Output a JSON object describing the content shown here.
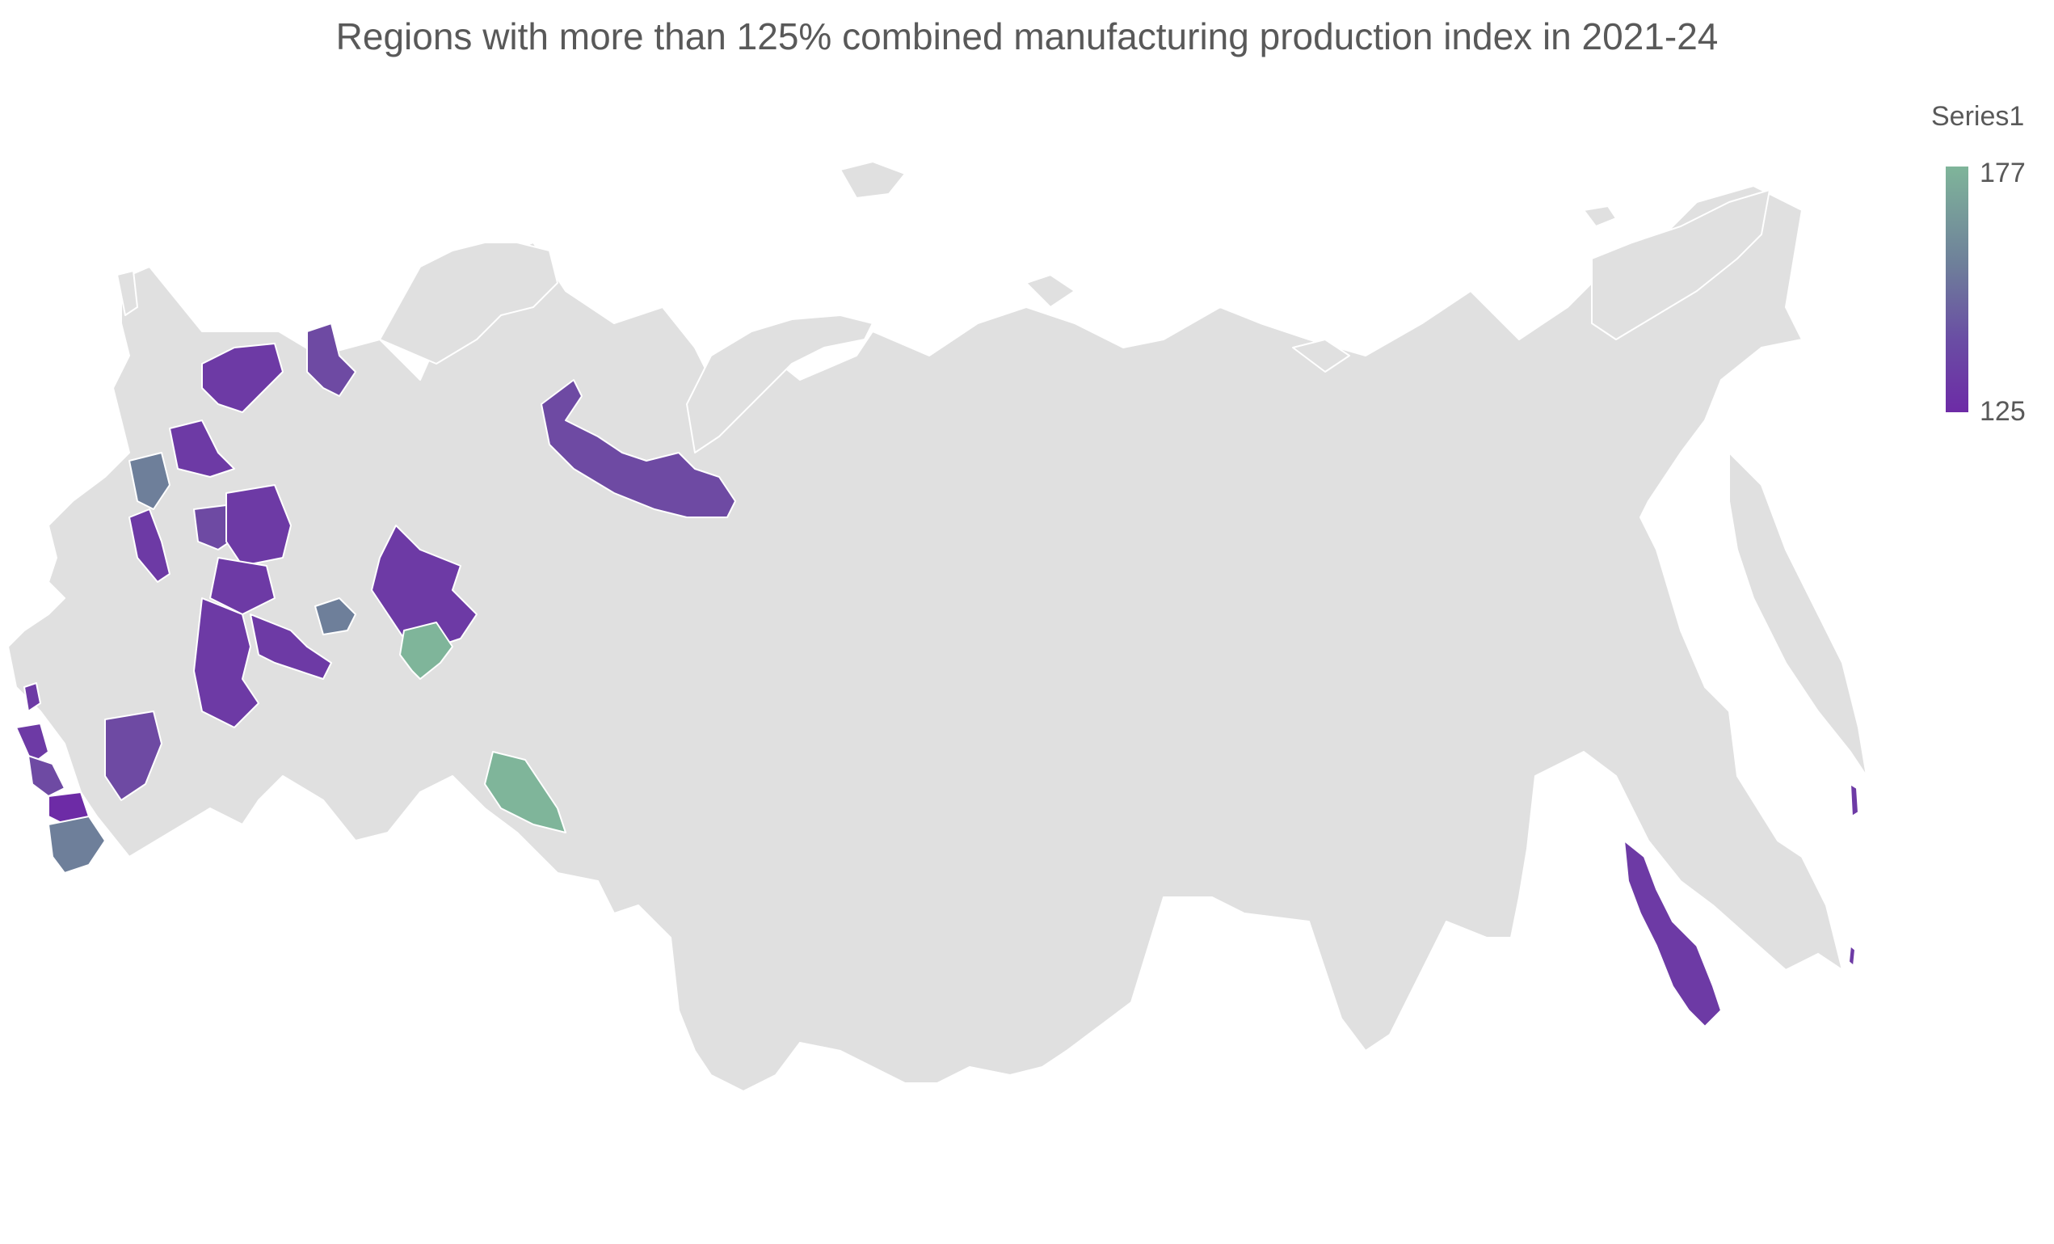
{
  "title": "Regions with more than 125% combined manufacturing production index in 2021-24",
  "legend": {
    "title": "Series1",
    "max": "177",
    "min": "125"
  },
  "colors": {
    "base_region": "#e0e0e0",
    "border": "#ffffff",
    "low": "#6d2ba6",
    "mid": "#6e5aa3",
    "slate": "#6e7f9a",
    "high": "#7fb59a"
  }
}
